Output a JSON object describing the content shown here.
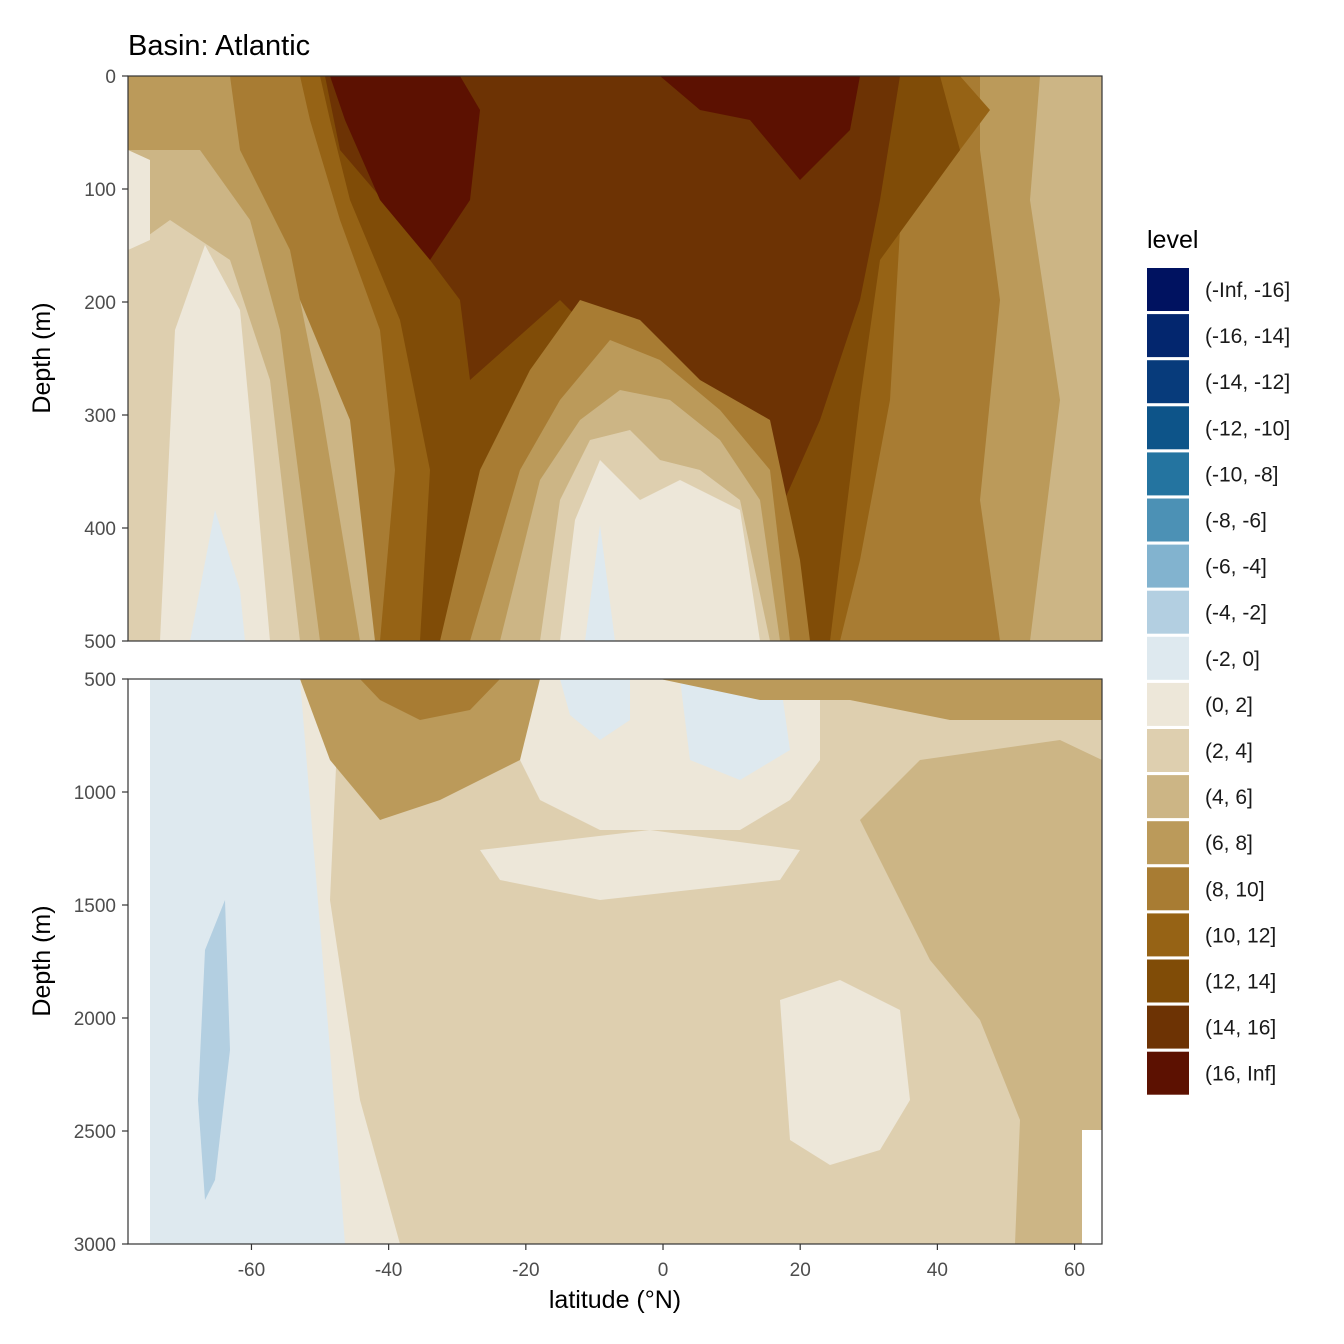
{
  "chart_data": {
    "type": "heatmap",
    "title": "Basin: Atlantic",
    "xlabel": "latitude (°N)",
    "ylabel": "Depth (m)",
    "xlim": [
      -78,
      64
    ],
    "x_ticks": [
      -60,
      -40,
      -20,
      0,
      20,
      40,
      60
    ],
    "panels": [
      {
        "name": "upper",
        "ylim": [
          0,
          500
        ],
        "y_ticks": [
          0,
          100,
          200,
          300,
          400,
          500
        ]
      },
      {
        "name": "lower",
        "ylim": [
          500,
          3000
        ],
        "y_ticks": [
          500,
          1000,
          1500,
          2000,
          2500,
          3000
        ]
      }
    ],
    "legend": {
      "title": "level",
      "position": "right",
      "levels": [
        {
          "label": "(-Inf, -16]",
          "color": "#001260"
        },
        {
          "label": "(-16, -14]",
          "color": "#03266e"
        },
        {
          "label": "(-14, -12]",
          "color": "#073b7b"
        },
        {
          "label": "(-12, -10]",
          "color": "#0d5489"
        },
        {
          "label": "(-10, -8]",
          "color": "#2474a0"
        },
        {
          "label": "(-8, -6]",
          "color": "#4c91b5"
        },
        {
          "label": "(-6, -4]",
          "color": "#82b3cf"
        },
        {
          "label": "(-4, -2]",
          "color": "#b3cfe1"
        },
        {
          "label": "(-2, 0]",
          "color": "#dee9ef"
        },
        {
          "label": "(0, 2]",
          "color": "#ede7d9"
        },
        {
          "label": "(2, 4]",
          "color": "#decfaf"
        },
        {
          "label": "(4, 6]",
          "color": "#ccb585"
        },
        {
          "label": "(6, 8]",
          "color": "#bb9a5a"
        },
        {
          "label": "(8, 10]",
          "color": "#a87c33"
        },
        {
          "label": "(10, 12]",
          "color": "#966315"
        },
        {
          "label": "(12, 14]",
          "color": "#804c07"
        },
        {
          "label": "(14, 16]",
          "color": "#6d3304"
        },
        {
          "label": "(16, Inf]",
          "color": "#5c1101"
        }
      ]
    }
  }
}
